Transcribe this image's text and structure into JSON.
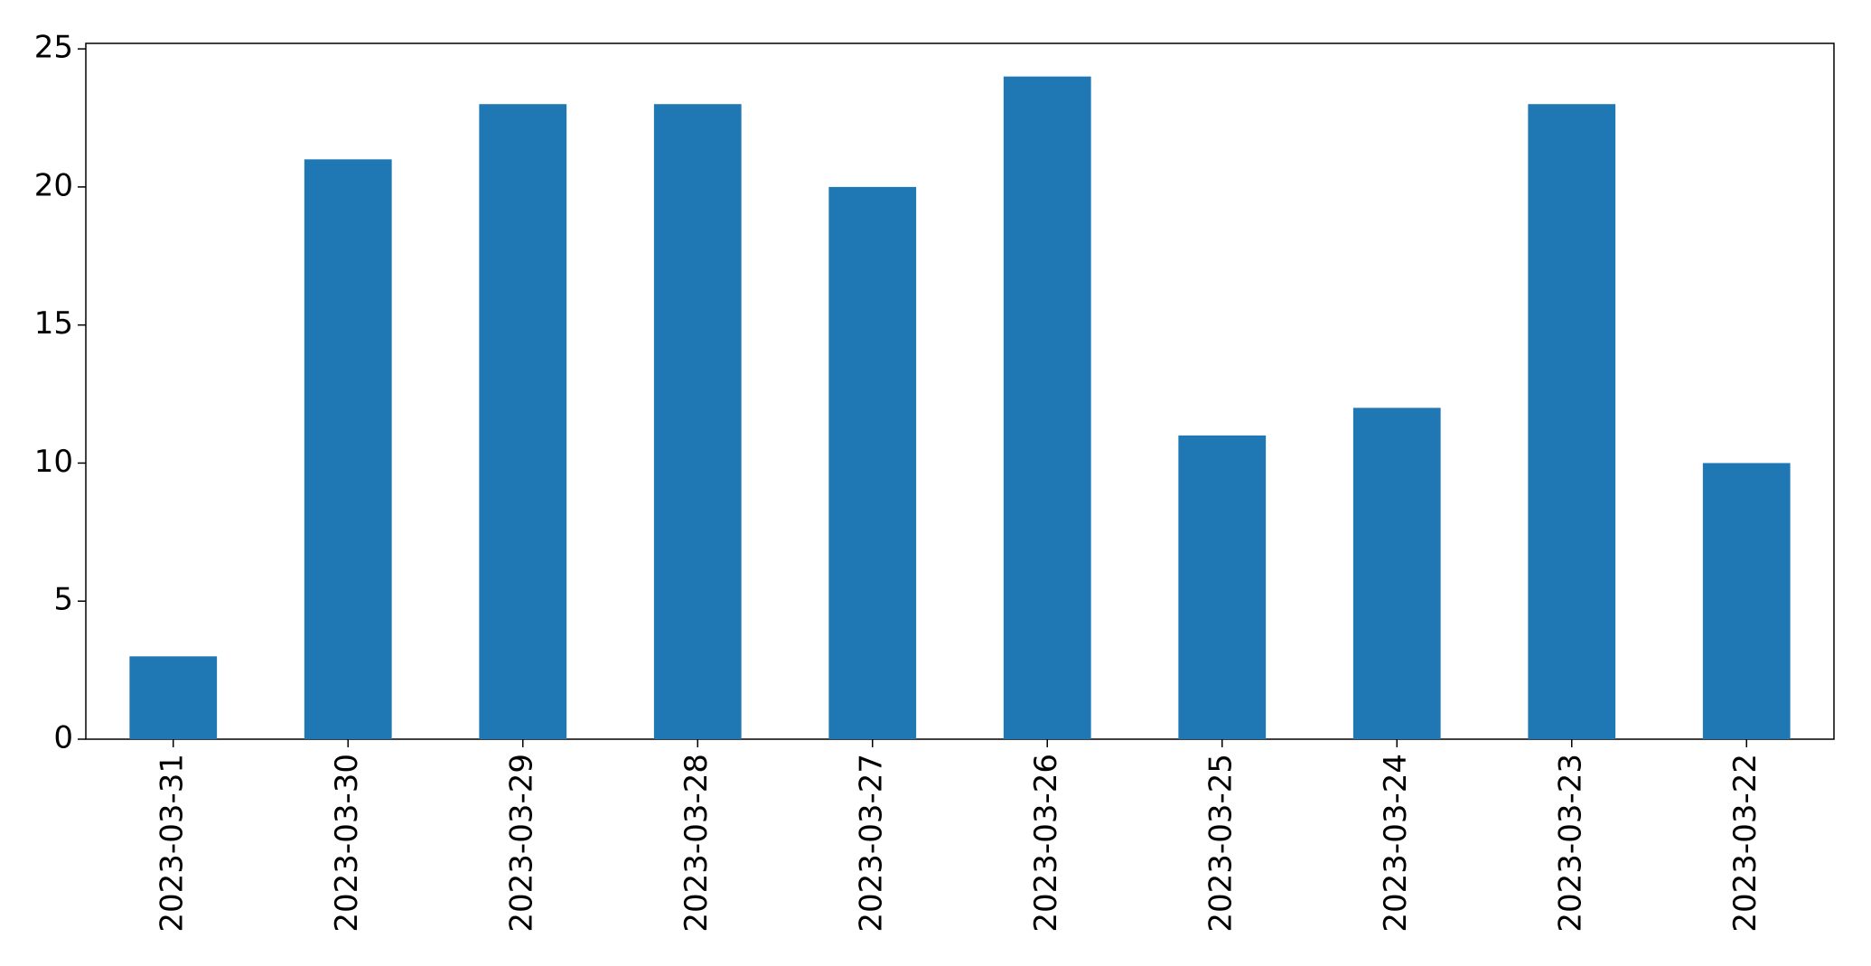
{
  "chart_data": {
    "type": "bar",
    "categories": [
      "2023-03-31",
      "2023-03-30",
      "2023-03-29",
      "2023-03-28",
      "2023-03-27",
      "2023-03-26",
      "2023-03-25",
      "2023-03-24",
      "2023-03-23",
      "2023-03-22"
    ],
    "values": [
      3,
      21,
      23,
      23,
      20,
      24,
      11,
      12,
      23,
      10
    ],
    "color": "#1f77b4",
    "ylim": [
      0,
      25.2
    ],
    "yticks": [
      0,
      5,
      10,
      15,
      20,
      25
    ],
    "grid": false
  }
}
